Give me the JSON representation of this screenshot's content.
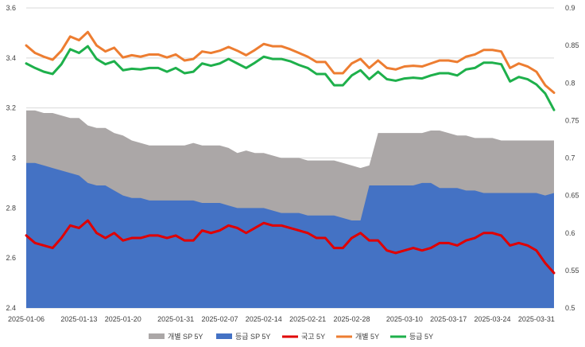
{
  "chart_data": {
    "type": "area",
    "x_tick_labels": [
      "2025-01-06",
      "2025-01-13",
      "2025-01-20",
      "2025-01-31",
      "2025-02-07",
      "2025-02-14",
      "2025-02-21",
      "2025-02-28",
      "2025-03-10",
      "2025-03-17",
      "2025-03-24",
      "2025-03-31"
    ],
    "x_tick_indices": [
      0,
      6,
      11,
      17,
      22,
      27,
      32,
      37,
      43,
      48,
      53,
      58
    ],
    "y_left": {
      "min": 2.4,
      "max": 3.6,
      "ticks": [
        "2.4",
        "2.6",
        "2.8",
        "3",
        "3.2",
        "3.4",
        "3.6"
      ]
    },
    "y_right": {
      "min": 0.5,
      "max": 0.9,
      "ticks": [
        "0.5",
        "0.55",
        "0.6",
        "0.65",
        "0.7",
        "0.75",
        "0.8",
        "0.85",
        "0.9"
      ]
    },
    "grid": "horizontal",
    "legend_position": "bottom",
    "series": [
      {
        "name": "개별 SP 5Y",
        "type": "area",
        "axis": "left",
        "color": "#ABA7A7",
        "values": [
          3.19,
          3.19,
          3.18,
          3.18,
          3.17,
          3.16,
          3.16,
          3.13,
          3.12,
          3.12,
          3.1,
          3.09,
          3.07,
          3.06,
          3.05,
          3.05,
          3.05,
          3.05,
          3.05,
          3.06,
          3.05,
          3.05,
          3.05,
          3.04,
          3.02,
          3.03,
          3.02,
          3.02,
          3.01,
          3.0,
          3.0,
          3.0,
          2.99,
          2.99,
          2.99,
          2.99,
          2.98,
          2.97,
          2.96,
          2.97,
          3.1,
          3.1,
          3.1,
          3.1,
          3.1,
          3.1,
          3.11,
          3.11,
          3.1,
          3.09,
          3.09,
          3.08,
          3.08,
          3.08,
          3.07,
          3.07,
          3.07,
          3.07,
          3.07,
          3.07,
          3.07
        ]
      },
      {
        "name": "등급 SP 5Y",
        "type": "area",
        "axis": "left",
        "color": "#4472C4",
        "values": [
          2.98,
          2.98,
          2.97,
          2.96,
          2.95,
          2.94,
          2.93,
          2.9,
          2.89,
          2.89,
          2.87,
          2.85,
          2.84,
          2.84,
          2.83,
          2.83,
          2.83,
          2.83,
          2.83,
          2.83,
          2.82,
          2.82,
          2.82,
          2.81,
          2.8,
          2.8,
          2.8,
          2.8,
          2.79,
          2.78,
          2.78,
          2.78,
          2.77,
          2.77,
          2.77,
          2.77,
          2.76,
          2.75,
          2.75,
          2.89,
          2.89,
          2.89,
          2.89,
          2.89,
          2.89,
          2.9,
          2.9,
          2.88,
          2.88,
          2.88,
          2.87,
          2.87,
          2.86,
          2.86,
          2.86,
          2.86,
          2.86,
          2.86,
          2.86,
          2.85,
          2.86
        ]
      },
      {
        "name": "국고 5Y",
        "type": "line",
        "axis": "left",
        "color": "#E00000",
        "values": [
          2.69,
          2.66,
          2.65,
          2.64,
          2.68,
          2.73,
          2.72,
          2.75,
          2.7,
          2.68,
          2.7,
          2.67,
          2.68,
          2.68,
          2.69,
          2.69,
          2.68,
          2.69,
          2.67,
          2.67,
          2.71,
          2.7,
          2.71,
          2.73,
          2.72,
          2.7,
          2.72,
          2.74,
          2.73,
          2.73,
          2.72,
          2.71,
          2.7,
          2.68,
          2.68,
          2.64,
          2.64,
          2.68,
          2.7,
          2.67,
          2.67,
          2.63,
          2.62,
          2.63,
          2.64,
          2.63,
          2.64,
          2.66,
          2.66,
          2.65,
          2.67,
          2.68,
          2.7,
          2.7,
          2.69,
          2.65,
          2.66,
          2.65,
          2.63,
          2.58,
          2.54
        ]
      },
      {
        "name": "개별 5Y",
        "type": "line",
        "axis": "right",
        "color": "#ED7D31",
        "values": [
          0.85,
          0.84,
          0.835,
          0.831,
          0.843,
          0.862,
          0.857,
          0.868,
          0.85,
          0.842,
          0.847,
          0.834,
          0.837,
          0.835,
          0.838,
          0.838,
          0.834,
          0.838,
          0.83,
          0.832,
          0.842,
          0.84,
          0.843,
          0.848,
          0.843,
          0.837,
          0.844,
          0.852,
          0.849,
          0.849,
          0.845,
          0.84,
          0.835,
          0.828,
          0.828,
          0.813,
          0.813,
          0.826,
          0.832,
          0.82,
          0.83,
          0.82,
          0.818,
          0.822,
          0.823,
          0.822,
          0.826,
          0.83,
          0.83,
          0.828,
          0.835,
          0.838,
          0.844,
          0.844,
          0.842,
          0.82,
          0.826,
          0.822,
          0.815,
          0.797,
          0.787
        ]
      },
      {
        "name": "등급 5Y",
        "type": "line",
        "axis": "right",
        "color": "#1EB04B",
        "values": [
          0.826,
          0.82,
          0.815,
          0.812,
          0.825,
          0.845,
          0.84,
          0.849,
          0.832,
          0.825,
          0.829,
          0.817,
          0.819,
          0.818,
          0.82,
          0.82,
          0.815,
          0.82,
          0.813,
          0.815,
          0.826,
          0.823,
          0.826,
          0.832,
          0.826,
          0.82,
          0.827,
          0.835,
          0.832,
          0.832,
          0.829,
          0.824,
          0.82,
          0.812,
          0.812,
          0.797,
          0.797,
          0.81,
          0.817,
          0.805,
          0.815,
          0.805,
          0.803,
          0.806,
          0.807,
          0.806,
          0.81,
          0.813,
          0.813,
          0.81,
          0.818,
          0.82,
          0.827,
          0.827,
          0.825,
          0.802,
          0.808,
          0.805,
          0.798,
          0.786,
          0.764
        ]
      }
    ]
  },
  "legend": [
    {
      "label": "개별 SP 5Y",
      "kind": "box",
      "color": "#ABA7A7"
    },
    {
      "label": "등급 SP 5Y",
      "kind": "box",
      "color": "#4472C4"
    },
    {
      "label": "국고 5Y",
      "kind": "line",
      "color": "#E00000"
    },
    {
      "label": "개별 5Y",
      "kind": "line",
      "color": "#ED7D31"
    },
    {
      "label": "등급 5Y",
      "kind": "line",
      "color": "#1EB04B"
    }
  ]
}
